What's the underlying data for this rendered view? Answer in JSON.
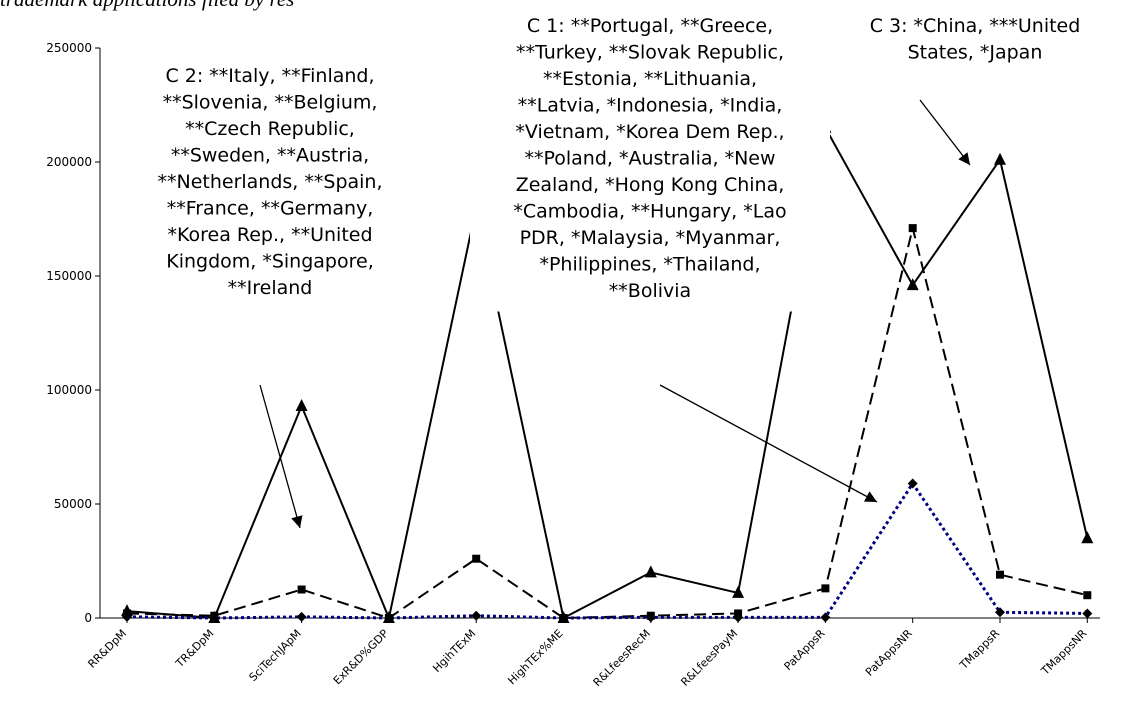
{
  "chart_data": {
    "type": "line",
    "title": "trademark applications filed by res",
    "categories": [
      "RR&DpM",
      "TR&DpM",
      "SciTechJApM",
      "ExR&D%GDP",
      "HgihTExM",
      "HighTEx%ME",
      "R&LfeesRecM",
      "R&LfeesPayM",
      "PatAppsR",
      "PatAppsNR",
      "TMappsR",
      "TMappsNR"
    ],
    "series": [
      {
        "color": "#000000",
        "dash": "solid",
        "marker": "triangle",
        "values": [
          3000,
          0,
          93000,
          0,
          180000,
          0,
          20000,
          11000,
          215000,
          146000,
          201000,
          35000
        ]
      },
      {
        "color": "#000000",
        "dash": "dashed",
        "marker": "square",
        "values": [
          2000,
          1000,
          12500,
          0,
          26000,
          0,
          1000,
          2000,
          13000,
          171000,
          19000,
          10000
        ]
      },
      {
        "color": "#000080",
        "dash": "dotted",
        "marker": "diamond",
        "values": [
          500,
          0,
          500,
          0,
          1000,
          0,
          300,
          300,
          300,
          59000,
          2500,
          2000
        ]
      }
    ],
    "ylim": [
      0,
      250000
    ],
    "yticks": [
      0,
      50000,
      100000,
      150000,
      200000,
      250000
    ],
    "annotations": [
      {
        "lines": [
          "C 2: **Italy, **Finland,",
          "**Slovenia, **Belgium,",
          "**Czech Republic,",
          "**Sweden, **Austria,",
          "**Netherlands, **Spain,",
          "**France, **Germany,",
          "*Korea Rep., **United",
          "Kingdom, *Singapore,",
          "**Ireland"
        ]
      },
      {
        "lines": [
          "C 1: **Portugal, **Greece,",
          "**Turkey, **Slovak Republic,",
          "**Estonia, **Lithuania,",
          "**Latvia, *Indonesia, *India,",
          "*Vietnam, *Korea Dem Rep.,",
          "**Poland,     *Australia, *New",
          "Zealand, *Hong Kong China,",
          "*Cambodia, **Hungary, *Lao",
          "PDR, *Malaysia, *Myanmar,",
          "*Philippines, *Thailand,",
          "**Bolivia"
        ]
      },
      {
        "lines": [
          "C 3: *China, ***United",
          "States, *Japan"
        ]
      }
    ]
  }
}
